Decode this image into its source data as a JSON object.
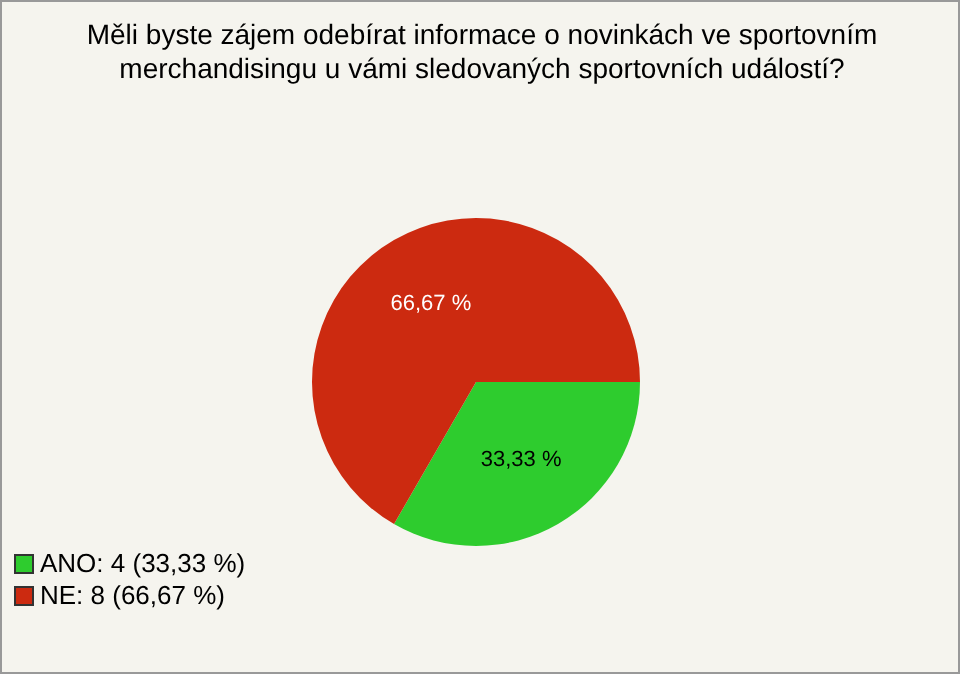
{
  "chart_data": {
    "type": "pie",
    "title": "Měli byste zájem odebírat informace o novinkách ve sportovním merchandisingu u vámi sledovaných sportovních událostí?",
    "categories": [
      "ANO: 4 (33,33 %)",
      "NE: 8 (66,67 %)"
    ],
    "values": [
      33.33,
      66.67
    ],
    "colors": [
      "#2ecc2e",
      "#cc2a10"
    ],
    "value_labels": [
      "33,33 %",
      "66,67 %"
    ],
    "legend": "bottom left"
  }
}
